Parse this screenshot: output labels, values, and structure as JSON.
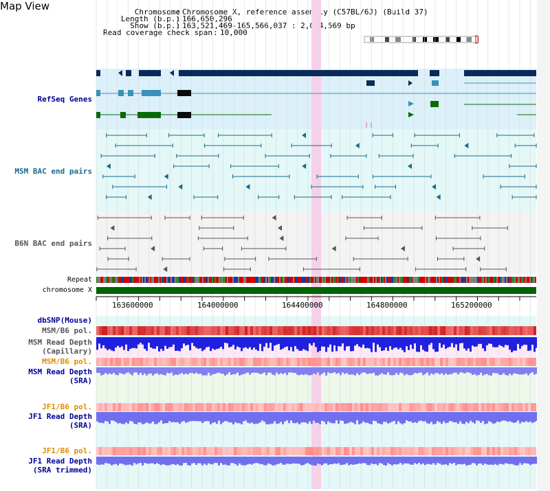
{
  "page": {
    "title": "Map View"
  },
  "header": {
    "rows": [
      {
        "label": "Chromosome",
        "value": "Chromosome X, reference assembly (C57BL/6J) (Build 37)"
      },
      {
        "label": "Length (b.p.)",
        "value": "166,650,296"
      },
      {
        "label": "Show (b.p.)",
        "value": "163,521,469-165,566,037 : 2,044,569 bp"
      }
    ],
    "coverage": {
      "label": "Read coverage check span",
      "value": "10,000"
    }
  },
  "tracks": {
    "refseq": "RefSeq Genes",
    "msm_bac": "MSM BAC end pairs",
    "b6n_bac": "B6N BAC end pairs",
    "repeat": "Repeat",
    "chromosome": "chromosome X",
    "dbsnp": "dbSNP(Mouse)",
    "msm_b6_pol_1": "MSM/B6 pol.",
    "msm_depth_cap_1": "MSM Read Depth",
    "msm_depth_cap_2": "(Capillary)",
    "msm_b6_pol_2": "MSM/B6 pol.",
    "msm_depth_sra_1": "MSM Read Depth",
    "msm_depth_sra_2": "(SRA)",
    "jf1_b6_pol_1": "JF1/B6 pol.",
    "jf1_depth_sra_1": "JF1 Read Depth",
    "jf1_depth_sra_2": "(SRA)",
    "jf1_b6_pol_2": "JF1/B6 pol.",
    "jf1_depth_trim_1": "JF1 Read Depth",
    "jf1_depth_trim_2": "(SRA trimmed)"
  },
  "axis": {
    "ticks": [
      "163600000",
      "164000000",
      "164400000",
      "164800000",
      "165200000"
    ]
  },
  "colors": {
    "refseq_bg": "#dcf0fa",
    "bac_bg": "#e4f8f8",
    "b6n_bg": "#f3f3f3",
    "highlight": "#f8d0ec",
    "gene_dark": "#0a2a5a",
    "gene_teal": "#3a90b8",
    "gene_green": "#0a6a0a",
    "msm_bac": "#1a6a8a",
    "b6n_bac": "#555555",
    "chromosome": "#006400",
    "label_blue": "#000099",
    "label_orange": "#e08c00",
    "depth_blue": "#2020e0",
    "depth_light": "#8080f0"
  }
}
